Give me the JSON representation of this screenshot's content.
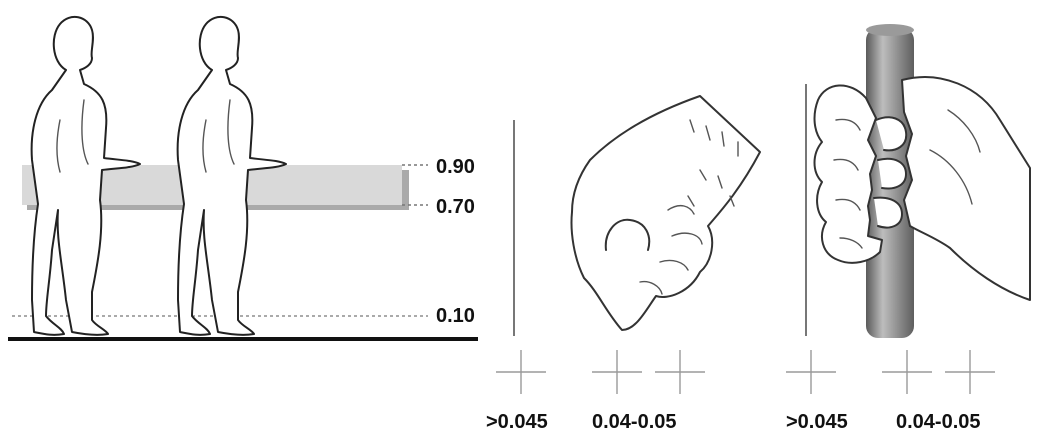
{
  "heights": {
    "upper": "0.90",
    "lower": "0.70",
    "floor": "0.10"
  },
  "grips": [
    {
      "label_a": ">0.045",
      "label_b": "0.04-0.05"
    },
    {
      "label_a": ">0.045",
      "label_b": "0.04-0.05"
    }
  ],
  "colors": {
    "rail_band": "#d9d9d9",
    "rail_shadow": "#555555",
    "floor": "#111111",
    "ball": "#8f8f8f",
    "pipe": "#7d7d7d",
    "guide": "#9a9a9a"
  }
}
